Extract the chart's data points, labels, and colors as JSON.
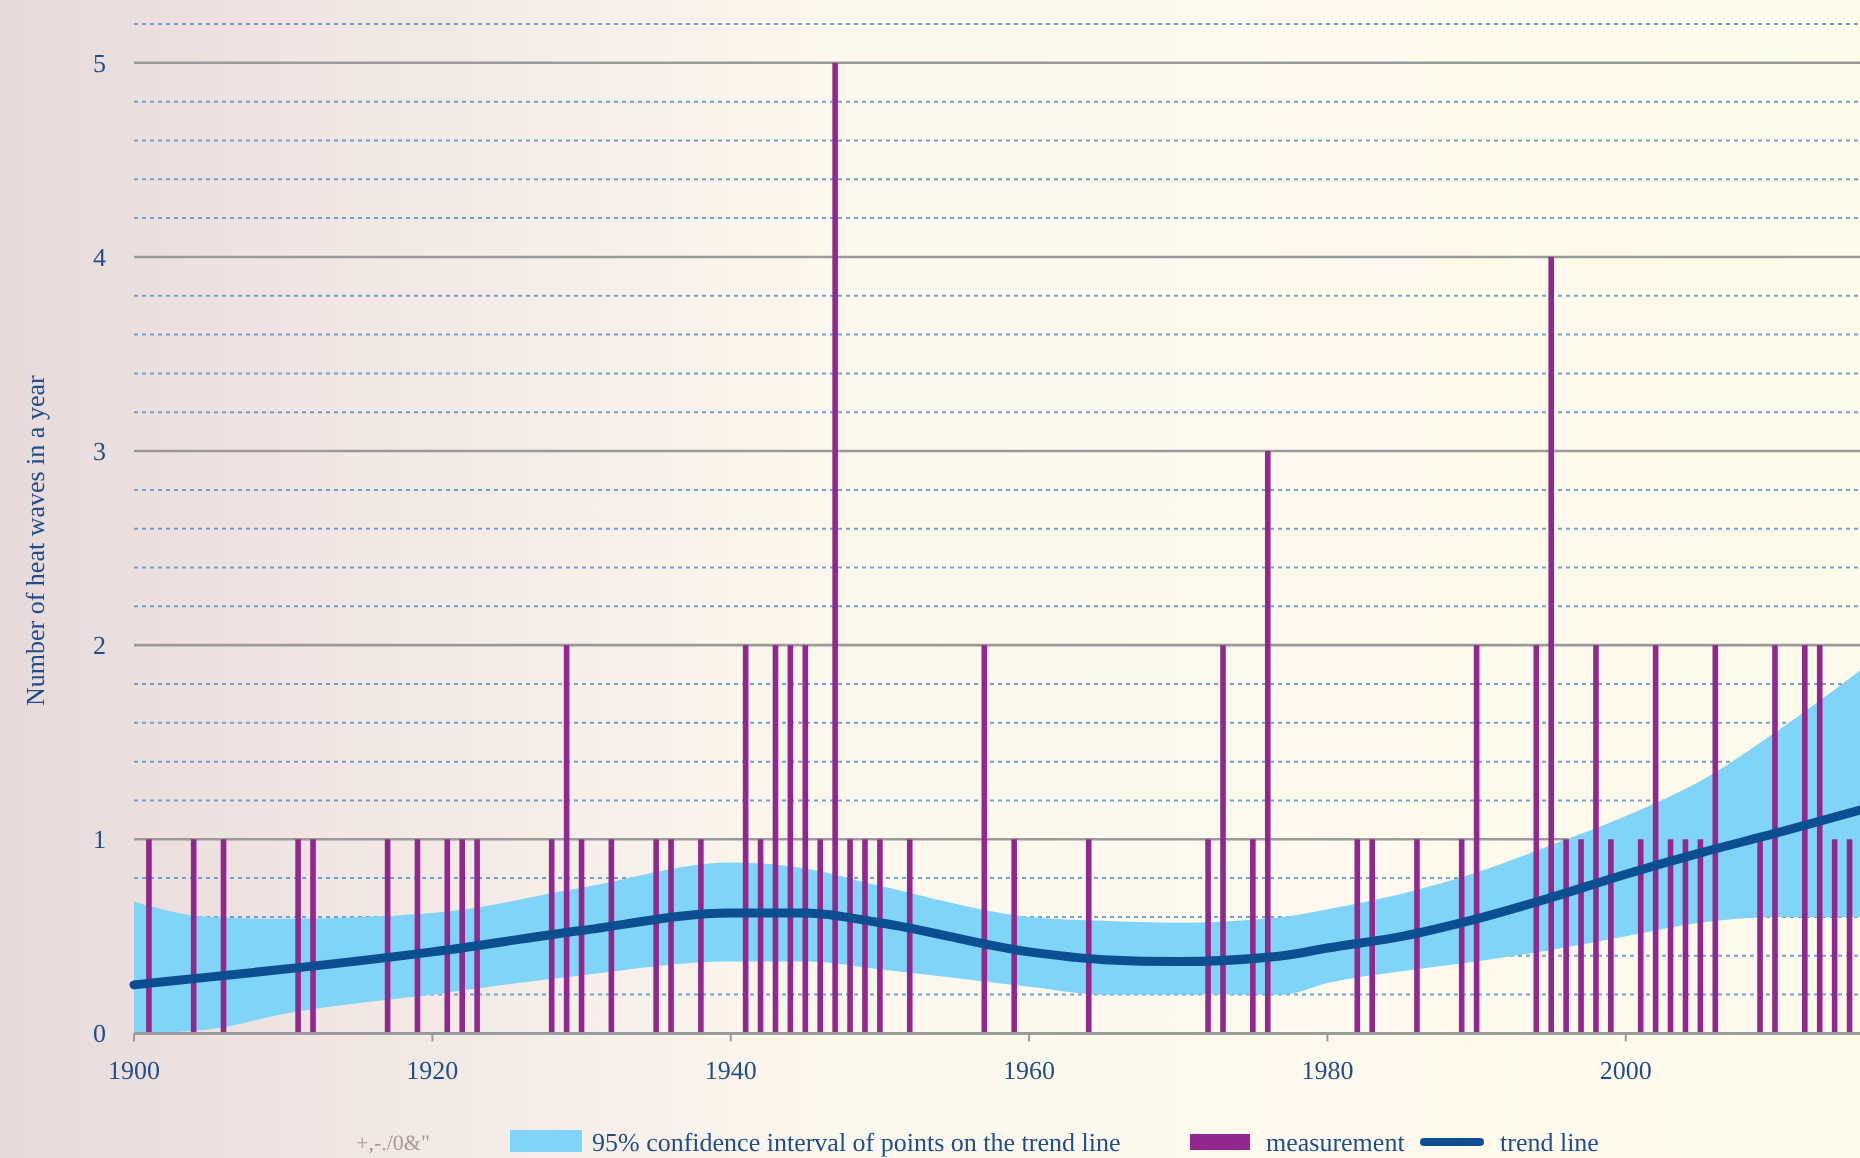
{
  "chart_data": {
    "type": "bar",
    "ylabel": "Number of heat waves in a year",
    "xlim": [
      1900,
      2015.7
    ],
    "xticks": [
      1900,
      1920,
      1940,
      1960,
      1980,
      2000
    ],
    "ylim": [
      0,
      5.2
    ],
    "yticks": [
      0,
      {
        "value": 0.2,
        "label": null
      },
      {
        "value": 0.4,
        "label": null
      },
      {
        "value": 0.6,
        "label": null
      },
      {
        "value": 0.8,
        "label": null
      },
      1,
      {
        "value": 1.2,
        "label": null
      },
      {
        "value": 1.4,
        "label": null
      },
      {
        "value": 1.6,
        "label": null
      },
      {
        "value": 1.8,
        "label": null
      },
      2,
      {
        "value": 2.2,
        "label": null
      },
      {
        "value": 2.4,
        "label": null
      },
      {
        "value": 2.6,
        "label": null
      },
      {
        "value": 2.8,
        "label": null
      },
      3,
      {
        "value": 3.2,
        "label": null
      },
      {
        "value": 3.4,
        "label": null
      },
      {
        "value": 3.6,
        "label": null
      },
      {
        "value": 3.8,
        "label": null
      },
      4,
      {
        "value": 4.2,
        "label": null
      },
      {
        "value": 4.4,
        "label": null
      },
      {
        "value": 4.6,
        "label": null
      },
      {
        "value": 4.8,
        "label": null
      },
      5,
      {
        "value": 5.2,
        "label": null
      }
    ],
    "grid": "y",
    "legend": "bottom",
    "annotations": [
      "+,-./0&\"",
      "95% confidence interval of points on the trend line"
    ],
    "series": [
      {
        "name": "measurement",
        "color": "#92278f",
        "x": [
          1901,
          1904,
          1906,
          1911,
          1912,
          1917,
          1919,
          1921,
          1922,
          1923,
          1928,
          1929,
          1930,
          1932,
          1935,
          1936,
          1938,
          1941,
          1942,
          1943,
          1944,
          1945,
          1946,
          1947,
          1948,
          1949,
          1950,
          1952,
          1957,
          1959,
          1964,
          1972,
          1973,
          1975,
          1976,
          1982,
          1983,
          1986,
          1989,
          1990,
          1994,
          1995,
          1996,
          1997,
          1998,
          1999,
          2001,
          2002,
          2003,
          2004,
          2005,
          2006,
          2009,
          2010,
          2012,
          2013,
          2014,
          2015
        ],
        "values": [
          1,
          1,
          1,
          1,
          1,
          1,
          1,
          1,
          1,
          1,
          1,
          2,
          1,
          1,
          1,
          1,
          1,
          2,
          1,
          2,
          2,
          2,
          1,
          5,
          1,
          1,
          1,
          1,
          2,
          1,
          1,
          1,
          2,
          1,
          3,
          1,
          1,
          1,
          1,
          2,
          2,
          4,
          1,
          1,
          2,
          1,
          1,
          2,
          1,
          1,
          1,
          2,
          1,
          2,
          2,
          2,
          1,
          1
        ]
      },
      {
        "type": "line",
        "name": "trend line",
        "color": "#0b4f91",
        "x": [
          1900,
          1905,
          1910,
          1920,
          1930,
          1940,
          1945,
          1950,
          1960,
          1965,
          1970,
          1977,
          1980,
          1985,
          1990,
          1995,
          2000,
          2005,
          2010,
          2015.7
        ],
        "values": [
          0.25,
          0.29,
          0.33,
          0.42,
          0.53,
          0.62,
          0.62,
          0.57,
          0.42,
          0.38,
          0.37,
          0.4,
          0.44,
          0.5,
          0.59,
          0.7,
          0.82,
          0.93,
          1.03,
          1.15
        ],
        "lower": [
          0,
          0.02,
          0.1,
          0.2,
          0.3,
          0.37,
          0.37,
          0.33,
          0.24,
          0.2,
          0.2,
          0.2,
          0.26,
          0.32,
          0.37,
          0.43,
          0.5,
          0.57,
          0.6,
          0.6
        ],
        "upper": [
          0.68,
          0.6,
          0.59,
          0.62,
          0.75,
          0.88,
          0.85,
          0.76,
          0.6,
          0.58,
          0.57,
          0.6,
          0.64,
          0.72,
          0.83,
          0.97,
          1.12,
          1.3,
          1.55,
          1.87
        ]
      }
    ]
  }
}
